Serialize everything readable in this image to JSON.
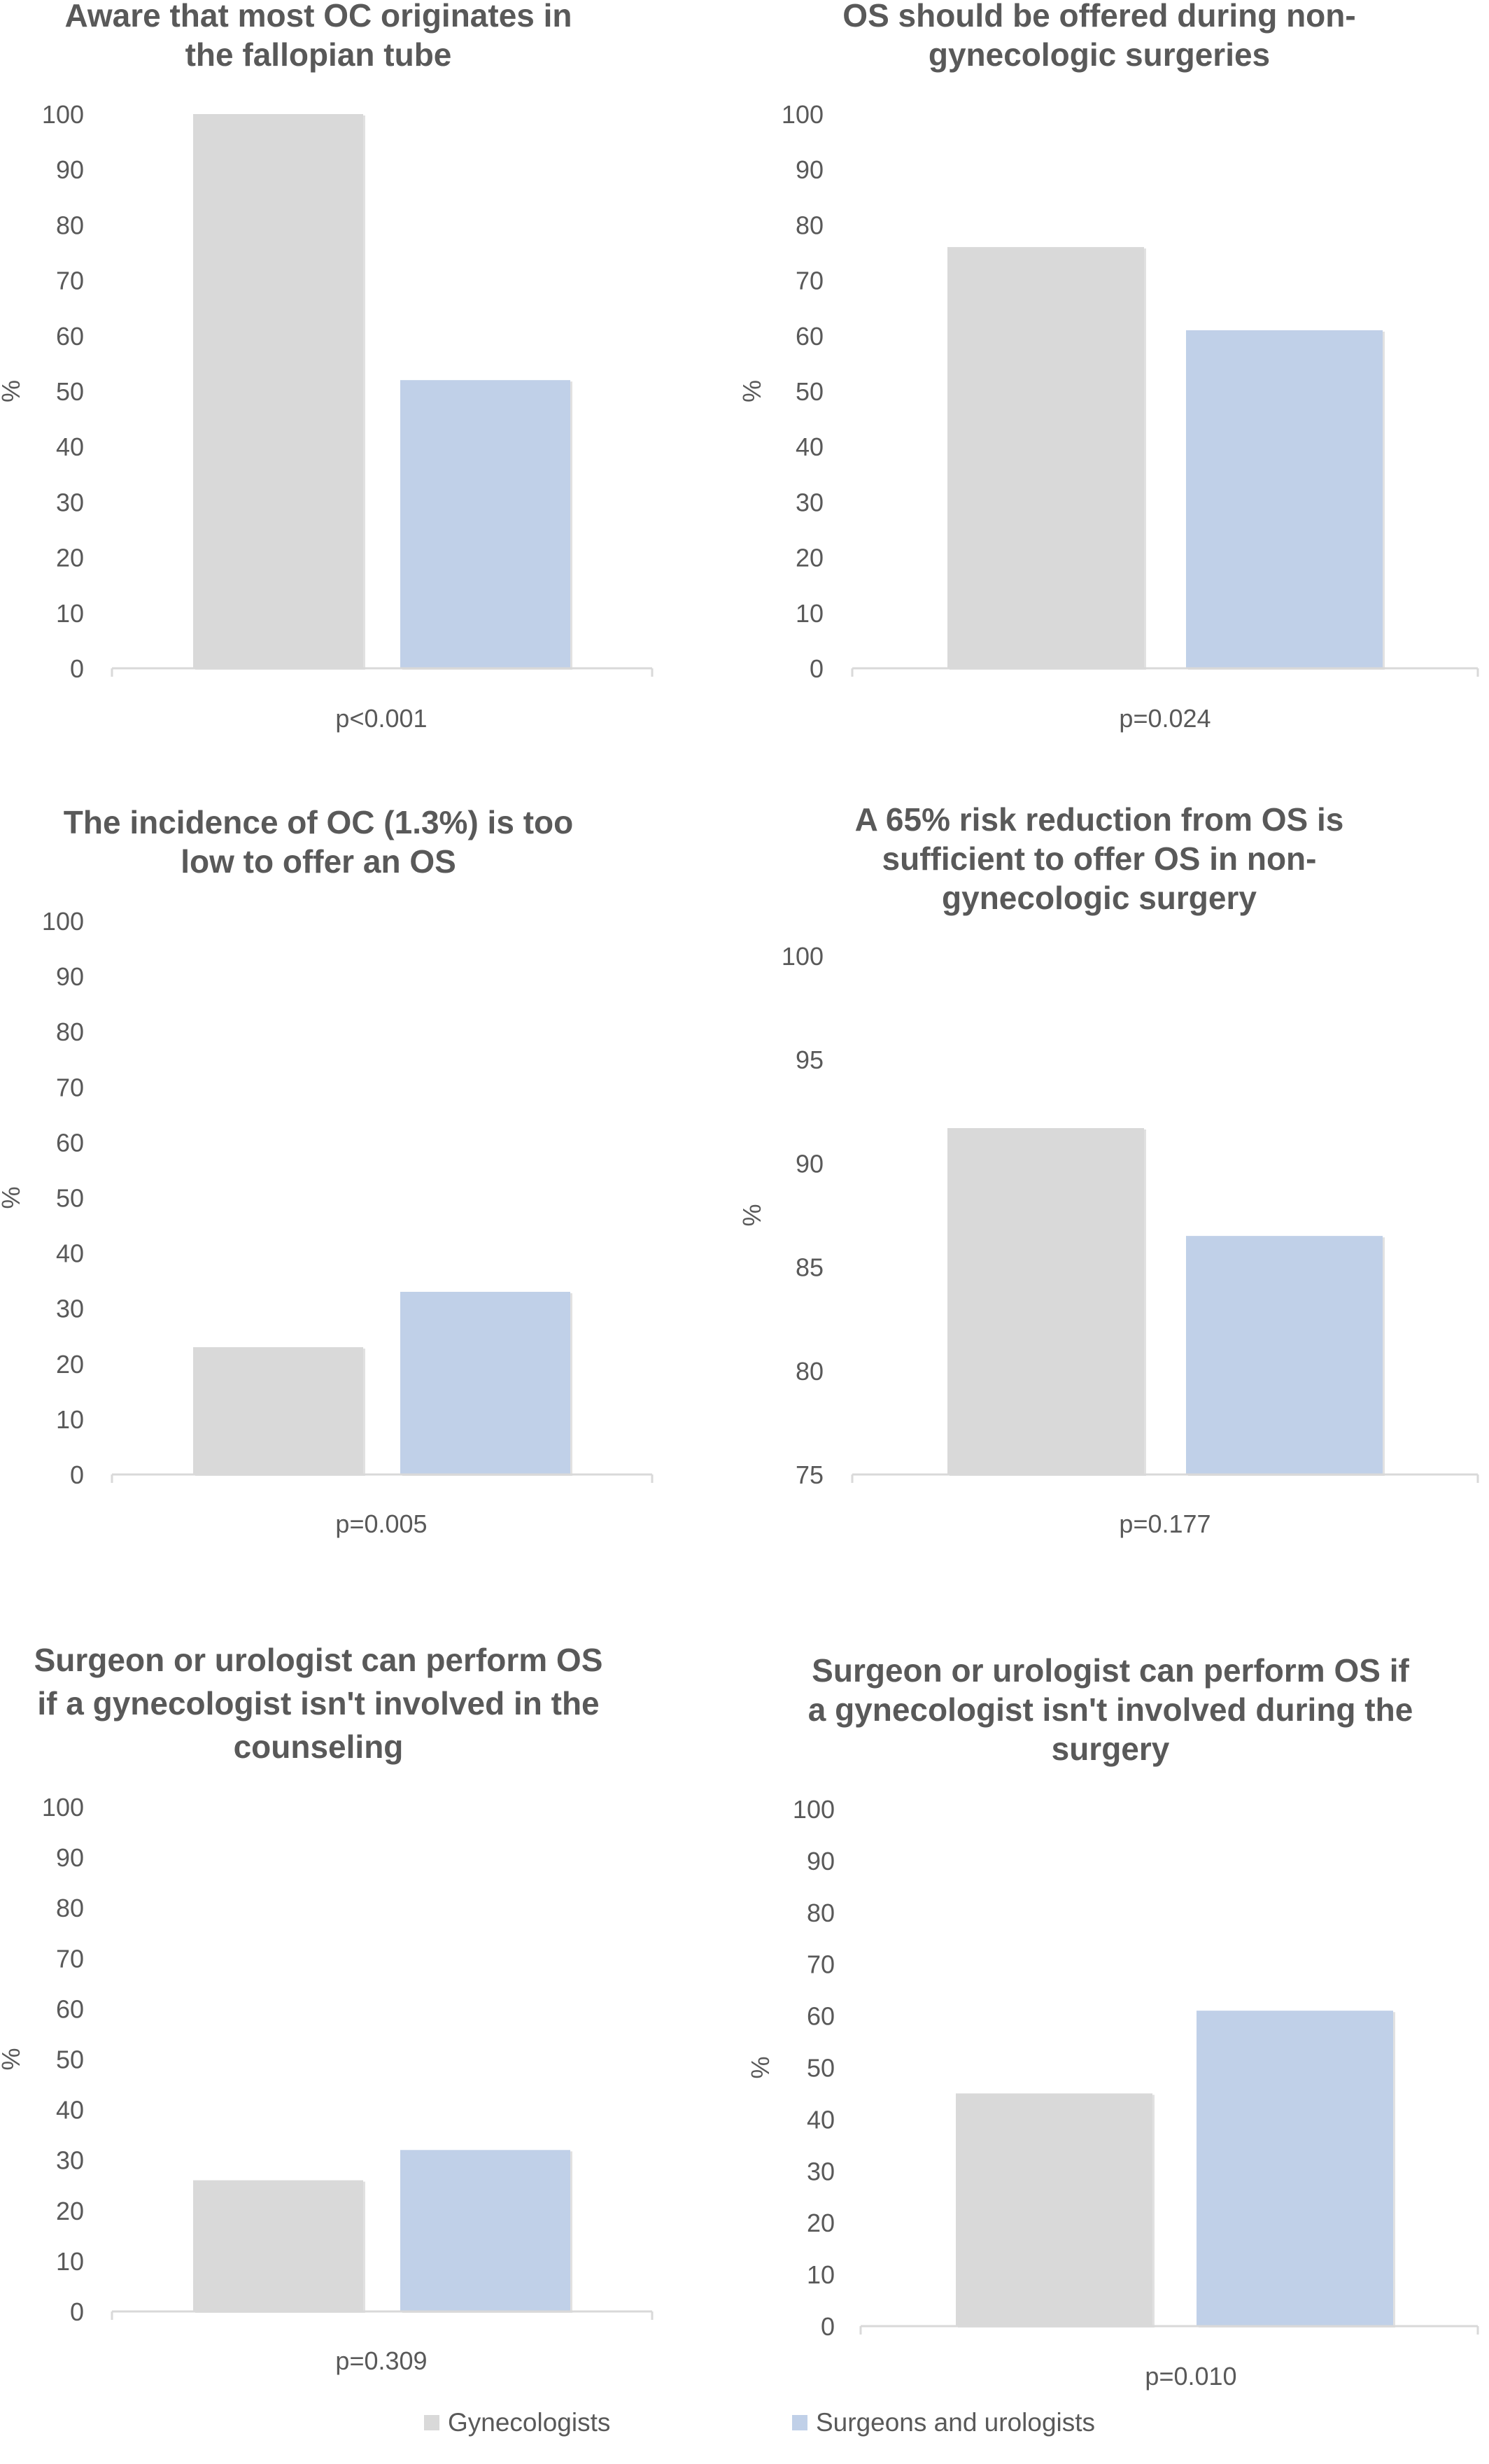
{
  "legend": [
    {
      "label": "Gynecologists",
      "color": "#d9d9d9"
    },
    {
      "label": "Surgeons and urologists",
      "color": "#c0d0e8"
    }
  ],
  "chart_data": [
    {
      "type": "bar",
      "title": [
        "Aware that most OC originates in",
        "the fallopian tube"
      ],
      "ylabel": "%",
      "xlabel": "p<0.001",
      "ylim": [
        0,
        100
      ],
      "yticks": [
        0,
        10,
        20,
        30,
        40,
        50,
        60,
        70,
        80,
        90,
        100
      ],
      "series": [
        {
          "name": "Gynecologists",
          "values": [
            100
          ]
        },
        {
          "name": "Surgeons and urologists",
          "values": [
            52
          ]
        }
      ]
    },
    {
      "type": "bar",
      "title": [
        "OS should be offered during non-",
        "gynecologic surgeries"
      ],
      "ylabel": "%",
      "xlabel": "p=0.024",
      "ylim": [
        0,
        100
      ],
      "yticks": [
        0,
        10,
        20,
        30,
        40,
        50,
        60,
        70,
        80,
        90,
        100
      ],
      "series": [
        {
          "name": "Gynecologists",
          "values": [
            76
          ]
        },
        {
          "name": "Surgeons and urologists",
          "values": [
            61
          ]
        }
      ]
    },
    {
      "type": "bar",
      "title": [
        "The incidence of OC (1.3%) is too",
        "low to offer an OS"
      ],
      "ylabel": "%",
      "xlabel": "p=0.005",
      "ylim": [
        0,
        100
      ],
      "yticks": [
        0,
        10,
        20,
        30,
        40,
        50,
        60,
        70,
        80,
        90,
        100
      ],
      "series": [
        {
          "name": "Gynecologists",
          "values": [
            23
          ]
        },
        {
          "name": "Surgeons and urologists",
          "values": [
            33
          ]
        }
      ]
    },
    {
      "type": "bar",
      "title": [
        "A 65% risk reduction from OS is",
        "sufficient to offer OS in non-",
        "gynecologic surgery"
      ],
      "ylabel": "%",
      "xlabel": "p=0.177",
      "ylim": [
        75,
        100
      ],
      "yticks": [
        75,
        80,
        85,
        90,
        95,
        100
      ],
      "series": [
        {
          "name": "Gynecologists",
          "values": [
            91.7
          ]
        },
        {
          "name": "Surgeons and urologists",
          "values": [
            86.5
          ]
        }
      ]
    },
    {
      "type": "bar",
      "title": [
        "Surgeon or urologist can perform OS",
        "if a gynecologist isn't involved in the",
        "counseling"
      ],
      "ylabel": "%",
      "xlabel": "p=0.309",
      "ylim": [
        0,
        100
      ],
      "yticks": [
        0,
        10,
        20,
        30,
        40,
        50,
        60,
        70,
        80,
        90,
        100
      ],
      "series": [
        {
          "name": "Gynecologists",
          "values": [
            26
          ]
        },
        {
          "name": "Surgeons and urologists",
          "values": [
            32
          ]
        }
      ]
    },
    {
      "type": "bar",
      "title": [
        "Surgeon or urologist can perform OS if",
        "a gynecologist isn't involved during the",
        "surgery"
      ],
      "ylabel": "%",
      "xlabel": "p=0.010",
      "ylim": [
        0,
        100
      ],
      "yticks": [
        0,
        10,
        20,
        30,
        40,
        50,
        60,
        70,
        80,
        90,
        100
      ],
      "series": [
        {
          "name": "Gynecologists",
          "values": [
            45
          ]
        },
        {
          "name": "Surgeons and urologists",
          "values": [
            61
          ]
        }
      ]
    }
  ]
}
